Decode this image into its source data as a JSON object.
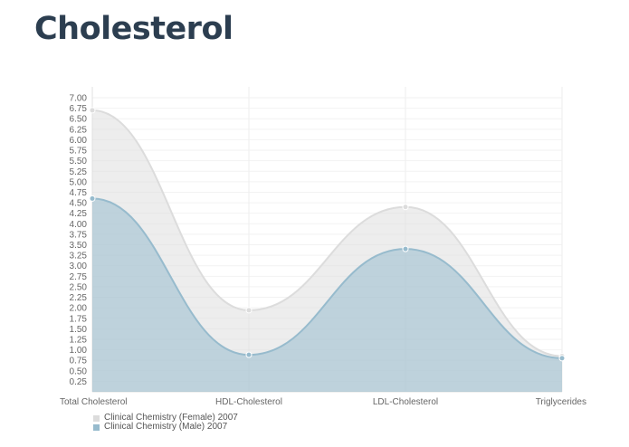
{
  "page": {
    "title": "Cholesterol"
  },
  "chart_data": {
    "type": "area",
    "title": "Cholesterol",
    "xlabel": "",
    "ylabel": "",
    "categories": [
      "Total Cholesterol",
      "HDL-Cholesterol",
      "LDL-Cholesterol",
      "Triglycerides"
    ],
    "series": [
      {
        "name": "Clinical Chemistry (Female) 2007",
        "values": [
          6.7,
          1.94,
          4.4,
          0.85
        ],
        "color": "#dcdcdc"
      },
      {
        "name": "Clinical Chemistry (Male) 2007",
        "values": [
          4.6,
          0.88,
          3.4,
          0.8
        ],
        "color": "#97bbcd"
      }
    ],
    "ylim": [
      0,
      7.0
    ],
    "yticks": [
      "0.25",
      "0.50",
      "0.75",
      "1.00",
      "1.25",
      "1.50",
      "1.75",
      "2.00",
      "2.25",
      "2.50",
      "2.75",
      "3.00",
      "3.25",
      "3.50",
      "3.75",
      "4.00",
      "4.25",
      "4.50",
      "4.75",
      "5.00",
      "5.25",
      "5.50",
      "5.75",
      "6.00",
      "6.25",
      "6.50",
      "6.75",
      "7.00"
    ],
    "grid": true,
    "legend_position": "bottom-left",
    "smooth": true
  },
  "legend": {
    "items": [
      {
        "label": "Clinical Chemistry (Female) 2007",
        "color": "#dcdcdc"
      },
      {
        "label": "Clinical Chemistry (Male) 2007",
        "color": "#97bbcd"
      }
    ]
  }
}
